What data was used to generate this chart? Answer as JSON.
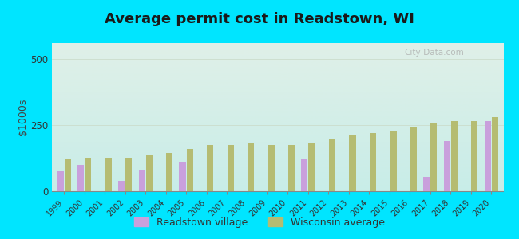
{
  "years": [
    1999,
    2000,
    2001,
    2002,
    2003,
    2004,
    2005,
    2006,
    2007,
    2008,
    2009,
    2010,
    2011,
    2012,
    2013,
    2014,
    2015,
    2016,
    2017,
    2018,
    2019,
    2020
  ],
  "readstown": [
    75,
    100,
    null,
    40,
    80,
    null,
    110,
    null,
    null,
    null,
    null,
    null,
    120,
    null,
    null,
    null,
    null,
    null,
    55,
    190,
    null,
    265
  ],
  "wisconsin": [
    120,
    125,
    125,
    125,
    140,
    145,
    160,
    175,
    175,
    185,
    175,
    175,
    185,
    195,
    210,
    220,
    230,
    240,
    255,
    265,
    265,
    280
  ],
  "title": "Average permit cost in Readstown, WI",
  "ylabel": "$1000s",
  "ylim": [
    0,
    560
  ],
  "yticks": [
    0,
    250,
    500
  ],
  "bar_color_readstown": "#c9a0dc",
  "bar_color_wisconsin": "#b5bc72",
  "background_outer": "#00e5ff",
  "bg_top": "#e0f0e8",
  "bg_bottom": "#c8ede8",
  "legend_readstown": "Readstown village",
  "legend_wisconsin": "Wisconsin average",
  "title_fontsize": 13,
  "watermark": "City-Data.com"
}
